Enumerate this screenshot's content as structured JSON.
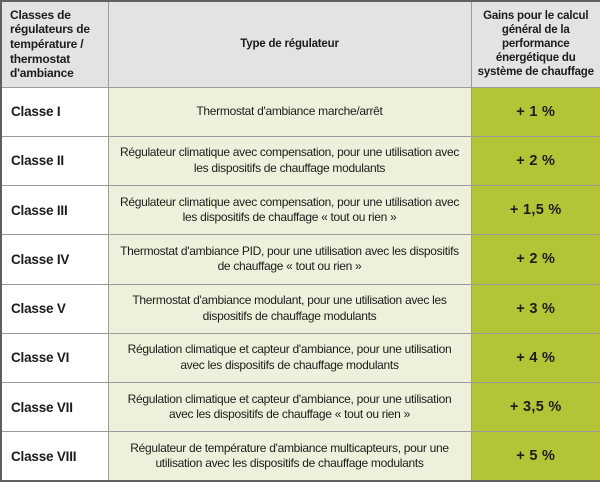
{
  "table": {
    "headers": [
      "Classes de régulateurs de température / thermostat d'ambiance",
      "Type de régulateur",
      "Gains pour le calcul général de la performance énergétique du système de chauffage"
    ],
    "rows": [
      {
        "classe": "Classe I",
        "type": "Thermostat d'ambiance marche/arrêt",
        "gain": "+ 1 %"
      },
      {
        "classe": "Classe II",
        "type": "Régulateur climatique avec compensation, pour une utilisation avec les dispositifs de chauffage modulants",
        "gain": "+ 2 %"
      },
      {
        "classe": "Classe III",
        "type": "Régulateur climatique avec compensation, pour une utilisation avec les dispositifs de chauffage « tout ou rien »",
        "gain": "+ 1,5 %"
      },
      {
        "classe": "Classe IV",
        "type": "Thermostat d'ambiance PID, pour une utilisation avec les dispositifs de chauffage « tout ou rien »",
        "gain": "+ 2 %"
      },
      {
        "classe": "Classe V",
        "type": "Thermostat d'ambiance modulant, pour une utilisation avec les dispositifs de chauffage modulants",
        "gain": "+ 3 %"
      },
      {
        "classe": "Classe VI",
        "type": "Régulation climatique et capteur d'ambiance, pour une utilisation avec les dispositifs de chauffage modulants",
        "gain": "+ 4 %"
      },
      {
        "classe": "Classe VII",
        "type": "Régulation climatique et capteur d'ambiance, pour une utilisation avec les dispositifs de chauffage « tout ou rien »",
        "gain": "+ 3,5 %"
      },
      {
        "classe": "Classe VIII",
        "type": "Régulateur de température d'ambiance multicapteurs, pour une utilisation avec les dispositifs de chauffage modulants",
        "gain": "+ 5 %"
      }
    ]
  },
  "colors": {
    "header_bg": "#e3e3e1",
    "class_bg": "#ffffff",
    "type_bg": "#eef0db",
    "gain_bg": "#b4c437",
    "border": "#9b9b9b",
    "outer_border": "#5f5f5d",
    "text": "#1c1c1a"
  }
}
